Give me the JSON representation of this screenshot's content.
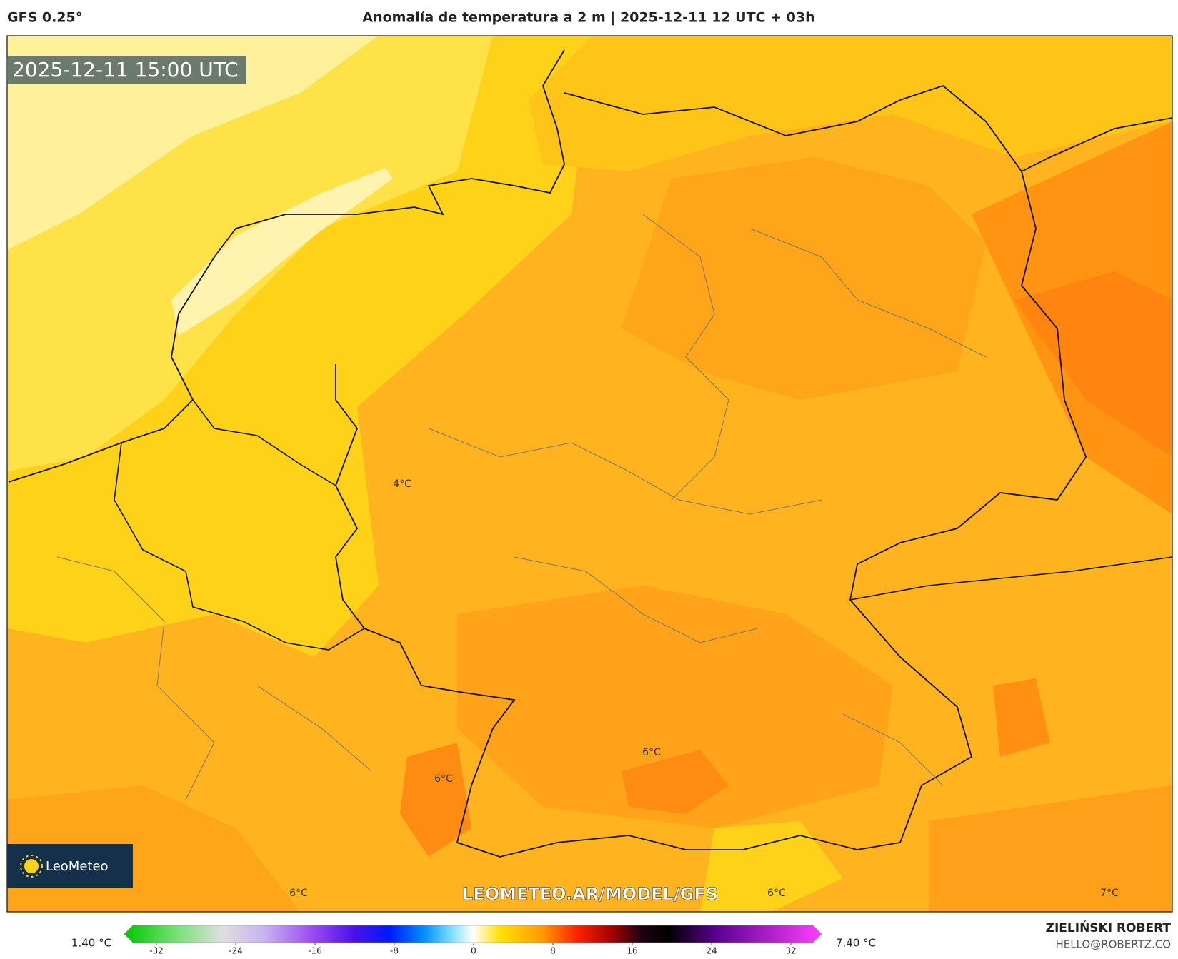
{
  "header": {
    "model": "GFS 0.25°",
    "title": "Anomalía de temperatura a 2 m | 2025-12-11 12 UTC + 03h"
  },
  "map": {
    "timestamp": "2025-12-11 15:00 UTC",
    "contour_labels": [
      "4°C",
      "6°C",
      "6°C",
      "6°C",
      "6°C",
      "7°C"
    ],
    "watermark": "LEOMETEO.AR/MODEL/GFS",
    "logo": "LeoMeteo"
  },
  "colorbar": {
    "ticks": [
      -32,
      -24,
      -16,
      -8,
      0,
      8,
      16,
      24,
      32
    ],
    "min_label": "1.40 °C",
    "max_label": "7.40 °C"
  },
  "footer": {
    "author": "ZIELIŃSKI ROBERT",
    "email": "HELLO@ROBERTZ.CO"
  }
}
